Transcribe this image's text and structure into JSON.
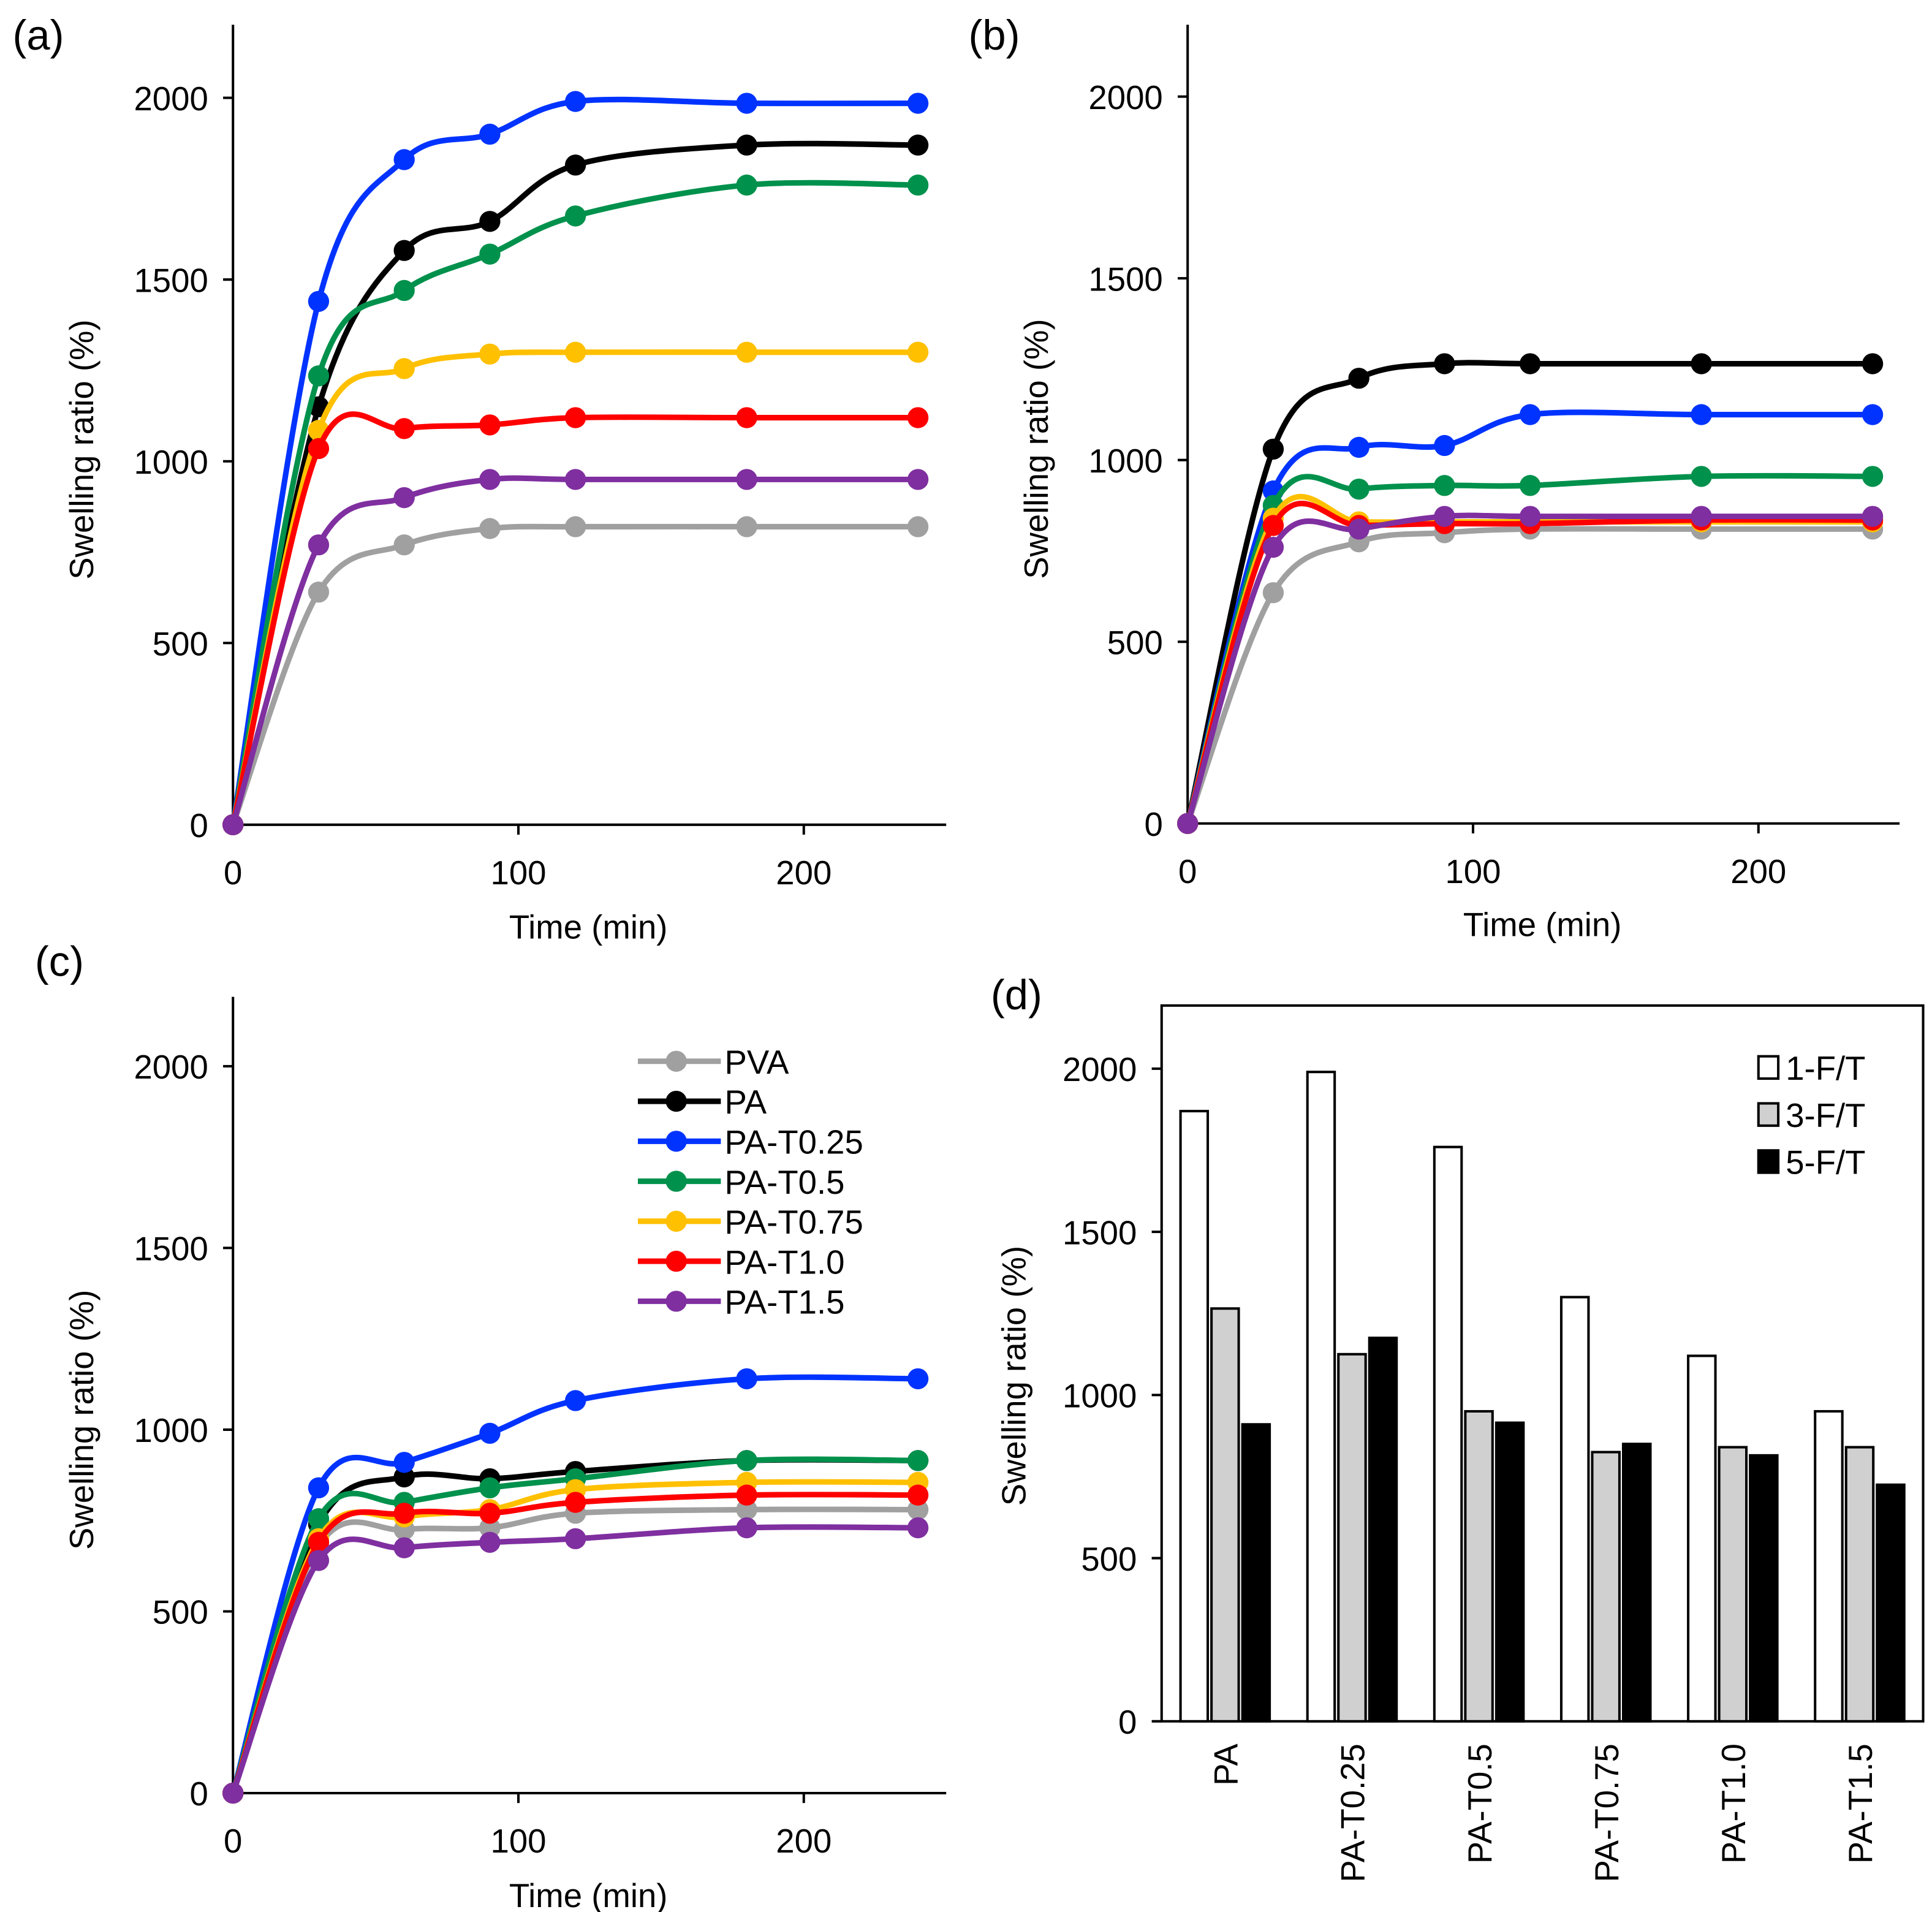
{
  "colors": {
    "PVA": "#a0a0a0",
    "PA": "#000000",
    "PA-T0.25": "#0033ff",
    "PA-T0.5": "#00914c",
    "PA-T0.75": "#ffc000",
    "PA-T1.0": "#ff0000",
    "PA-T1.5": "#7f2fa0"
  },
  "chart_data": [
    {
      "panel": "(a)",
      "type": "line",
      "xlabel": "Time (min)",
      "ylabel": "Swelling ratio (%)",
      "xlim": [
        0,
        250
      ],
      "ylim": [
        0,
        2200
      ],
      "xticks": [
        "0",
        "100",
        "200"
      ],
      "yticks": [
        "0",
        "500",
        "1000",
        "1500",
        "2000"
      ],
      "x": [
        0,
        30,
        60,
        90,
        120,
        180,
        240
      ],
      "series": [
        {
          "name": "PVA",
          "values": [
            0,
            640,
            770,
            815,
            820,
            820,
            820
          ]
        },
        {
          "name": "PA",
          "values": [
            0,
            1150,
            1580,
            1660,
            1815,
            1870,
            1870
          ]
        },
        {
          "name": "PA-T0.25",
          "values": [
            0,
            1440,
            1830,
            1900,
            1990,
            1985,
            1985
          ]
        },
        {
          "name": "PA-T0.5",
          "values": [
            0,
            1235,
            1470,
            1570,
            1675,
            1760,
            1760
          ]
        },
        {
          "name": "PA-T0.75",
          "values": [
            0,
            1085,
            1255,
            1295,
            1300,
            1300,
            1300
          ]
        },
        {
          "name": "PA-T1.0",
          "values": [
            0,
            1035,
            1090,
            1100,
            1120,
            1120,
            1120
          ]
        },
        {
          "name": "PA-T1.5",
          "values": [
            0,
            770,
            900,
            950,
            950,
            950,
            950
          ]
        }
      ]
    },
    {
      "panel": "(b)",
      "type": "line",
      "xlabel": "Time (min)",
      "ylabel": "Swelling ratio (%)",
      "xlim": [
        0,
        250
      ],
      "ylim": [
        0,
        2200
      ],
      "xticks": [
        "0",
        "100",
        "200"
      ],
      "yticks": [
        "0",
        "500",
        "1000",
        "1500",
        "2000"
      ],
      "x": [
        0,
        30,
        60,
        90,
        120,
        180,
        240
      ],
      "series": [
        {
          "name": "PVA",
          "values": [
            0,
            635,
            775,
            800,
            810,
            810,
            810
          ]
        },
        {
          "name": "PA",
          "values": [
            0,
            1030,
            1225,
            1265,
            1265,
            1265,
            1265
          ]
        },
        {
          "name": "PA-T0.25",
          "values": [
            0,
            915,
            1035,
            1040,
            1125,
            1125,
            1125
          ]
        },
        {
          "name": "PA-T0.5",
          "values": [
            0,
            875,
            920,
            930,
            930,
            955,
            955
          ]
        },
        {
          "name": "PA-T0.75",
          "values": [
            0,
            840,
            830,
            830,
            830,
            830,
            830
          ]
        },
        {
          "name": "PA-T1.0",
          "values": [
            0,
            820,
            820,
            825,
            825,
            835,
            835
          ]
        },
        {
          "name": "PA-T1.5",
          "values": [
            0,
            760,
            810,
            845,
            845,
            845,
            845
          ]
        }
      ]
    },
    {
      "panel": "(c)",
      "type": "line",
      "xlabel": "Time (min)",
      "ylabel": "Swelling ratio (%)",
      "xlim": [
        0,
        250
      ],
      "ylim": [
        0,
        2200
      ],
      "xticks": [
        "0",
        "100",
        "200"
      ],
      "yticks": [
        "0",
        "500",
        "1000",
        "1500",
        "2000"
      ],
      "legend": "top-right",
      "x": [
        0,
        30,
        60,
        90,
        120,
        180,
        240
      ],
      "series": [
        {
          "name": "PVA",
          "values": [
            0,
            680,
            725,
            730,
            770,
            780,
            780
          ]
        },
        {
          "name": "PA",
          "values": [
            0,
            740,
            870,
            865,
            885,
            915,
            915
          ]
        },
        {
          "name": "PA-T0.25",
          "values": [
            0,
            840,
            910,
            990,
            1080,
            1140,
            1140
          ]
        },
        {
          "name": "PA-T0.5",
          "values": [
            0,
            755,
            800,
            840,
            865,
            915,
            915
          ]
        },
        {
          "name": "PA-T0.75",
          "values": [
            0,
            700,
            760,
            780,
            835,
            855,
            855
          ]
        },
        {
          "name": "PA-T1.0",
          "values": [
            0,
            690,
            770,
            770,
            800,
            820,
            820
          ]
        },
        {
          "name": "PA-T1.5",
          "values": [
            0,
            640,
            675,
            690,
            700,
            730,
            730
          ]
        }
      ]
    },
    {
      "panel": "(d)",
      "type": "bar",
      "ylabel": "Swelling ratio (%)",
      "ylim": [
        0,
        2200
      ],
      "yticks": [
        "0",
        "500",
        "1000",
        "1500",
        "2000"
      ],
      "legend": "top-right",
      "categories": [
        "PA",
        "PA-T0.25",
        "PA-T0.5",
        "PA-T0.75",
        "PA-T1.0",
        "PA-T1.5"
      ],
      "series": [
        {
          "name": "1-F/T",
          "color": "#ffffff",
          "values": [
            1870,
            1990,
            1760,
            1300,
            1120,
            950
          ]
        },
        {
          "name": "3-F/T",
          "color": "#d0d0d0",
          "values": [
            1265,
            1125,
            950,
            825,
            840,
            840
          ]
        },
        {
          "name": "5-F/T",
          "color": "#000000",
          "values": [
            910,
            1175,
            915,
            850,
            815,
            725
          ]
        }
      ]
    }
  ]
}
